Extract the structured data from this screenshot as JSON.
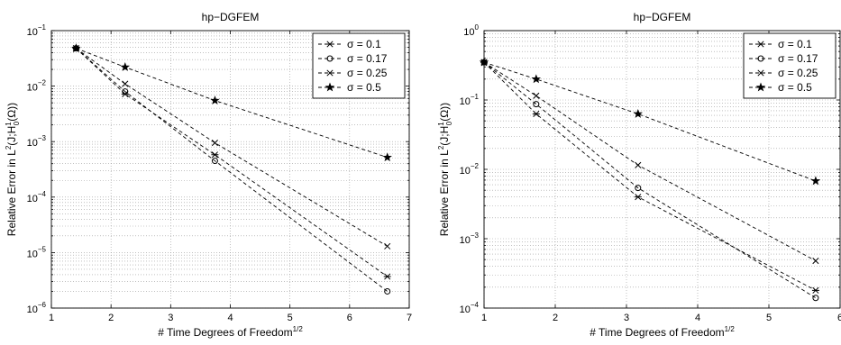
{
  "chart_data": [
    {
      "type": "line",
      "title": "hp−DGFEM",
      "xlabel": "# Time Degrees of Freedom",
      "xlabel_sup": "1/2",
      "ylabel_parts": [
        "Relative Error in L",
        "2",
        "(J;H",
        "1",
        "0",
        "(Ω))"
      ],
      "xlim": [
        1,
        7
      ],
      "ylim": [
        1e-06,
        0.1
      ],
      "yscale": "log",
      "grid": true,
      "legend_position": "top-right",
      "xticks": [
        "1",
        "2",
        "3",
        "4",
        "5",
        "6",
        "7"
      ],
      "yticks": [
        {
          "mant": "10",
          "exp": "−6"
        },
        {
          "mant": "10",
          "exp": "−5"
        },
        {
          "mant": "10",
          "exp": "−4"
        },
        {
          "mant": "10",
          "exp": "−3"
        },
        {
          "mant": "10",
          "exp": "−2"
        },
        {
          "mant": "10",
          "exp": "−1"
        }
      ],
      "series": [
        {
          "name": "σ = 0.1",
          "marker": "asterisk",
          "x": [
            1.414,
            2.236,
            3.742,
            6.633
          ],
          "y": [
            0.048,
            0.0072,
            0.00058,
            3.7e-06
          ]
        },
        {
          "name": "σ = 0.17",
          "marker": "circle",
          "x": [
            1.414,
            2.236,
            3.742,
            6.633
          ],
          "y": [
            0.048,
            0.008,
            0.00045,
            2e-06
          ]
        },
        {
          "name": "σ = 0.25",
          "marker": "cross",
          "x": [
            1.414,
            2.236,
            3.742,
            6.633
          ],
          "y": [
            0.048,
            0.011,
            0.00095,
            1.3e-05
          ]
        },
        {
          "name": "σ = 0.5",
          "marker": "star",
          "x": [
            1.414,
            2.236,
            3.742,
            6.633
          ],
          "y": [
            0.048,
            0.022,
            0.0055,
            0.00052
          ]
        }
      ]
    },
    {
      "type": "line",
      "title": "hp−DGFEM",
      "xlabel": "# Time Degrees of Freedom",
      "xlabel_sup": "1/2",
      "ylabel_parts": [
        "Relative Error in L",
        "2",
        "(J;H",
        "1",
        "0",
        "(Ω))"
      ],
      "xlim": [
        1,
        6
      ],
      "ylim": [
        0.0001,
        1
      ],
      "yscale": "log",
      "grid": true,
      "legend_position": "top-right",
      "xticks": [
        "1",
        "2",
        "3",
        "4",
        "5",
        "6"
      ],
      "yticks": [
        {
          "mant": "10",
          "exp": "−4"
        },
        {
          "mant": "10",
          "exp": "−3"
        },
        {
          "mant": "10",
          "exp": "−2"
        },
        {
          "mant": "10",
          "exp": "−1"
        },
        {
          "mant": "10",
          "exp": "0"
        }
      ],
      "series": [
        {
          "name": "σ = 0.1",
          "marker": "asterisk",
          "x": [
            1.0,
            1.732,
            3.162,
            5.657
          ],
          "y": [
            0.35,
            0.063,
            0.004,
            0.00018
          ]
        },
        {
          "name": "σ = 0.17",
          "marker": "circle",
          "x": [
            1.0,
            1.732,
            3.162,
            5.657
          ],
          "y": [
            0.35,
            0.087,
            0.0054,
            0.00014
          ]
        },
        {
          "name": "σ = 0.25",
          "marker": "cross",
          "x": [
            1.0,
            1.732,
            3.162,
            5.657
          ],
          "y": [
            0.35,
            0.115,
            0.0115,
            0.00048
          ]
        },
        {
          "name": "σ = 0.5",
          "marker": "star",
          "x": [
            1.0,
            1.732,
            3.162,
            5.657
          ],
          "y": [
            0.35,
            0.2,
            0.063,
            0.0068
          ]
        }
      ]
    }
  ]
}
